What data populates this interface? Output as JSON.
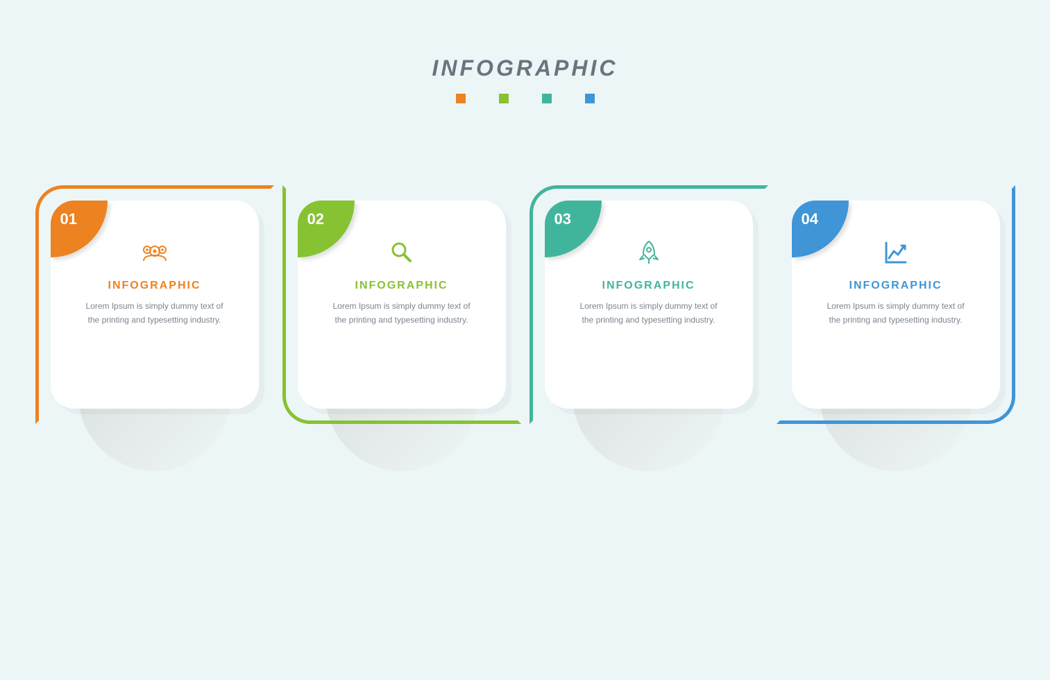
{
  "header": {
    "title": "INFOGRAPHIC",
    "title_color": "#6a7480",
    "title_fontsize": 32
  },
  "background_color": "#edf6f6",
  "legend_colors": [
    "#ed8220",
    "#86c232",
    "#41b59b",
    "#3f95d6"
  ],
  "cards": [
    {
      "number": "01",
      "title": "INFOGRAPHIC",
      "body": "Lorem Ipsum is simply dummy text of the printing and typesetting industry.",
      "color": "#ed8220",
      "icon": "users",
      "frame_variant": "v1"
    },
    {
      "number": "02",
      "title": "INFOGRAPHIC",
      "body": "Lorem Ipsum is simply dummy text of the printing and typesetting industry.",
      "color": "#86c232",
      "icon": "search",
      "frame_variant": "v2"
    },
    {
      "number": "03",
      "title": "INFOGRAPHIC",
      "body": "Lorem Ipsum is simply dummy text of the printing and typesetting industry.",
      "color": "#41b59b",
      "icon": "rocket",
      "frame_variant": "v3"
    },
    {
      "number": "04",
      "title": "INFOGRAPHIC",
      "body": "Lorem Ipsum is simply dummy text of the printing and typesetting industry.",
      "color": "#3f95d6",
      "icon": "chart",
      "frame_variant": "v4"
    }
  ],
  "card_style": {
    "card_bg": "#ffffff",
    "card_radius": 34,
    "frame_width": 5,
    "frame_radius": 40,
    "body_color": "#7b8590",
    "title_fontsize": 16,
    "body_fontsize": 12,
    "shadow_blob_color": "#d7dcdc"
  }
}
